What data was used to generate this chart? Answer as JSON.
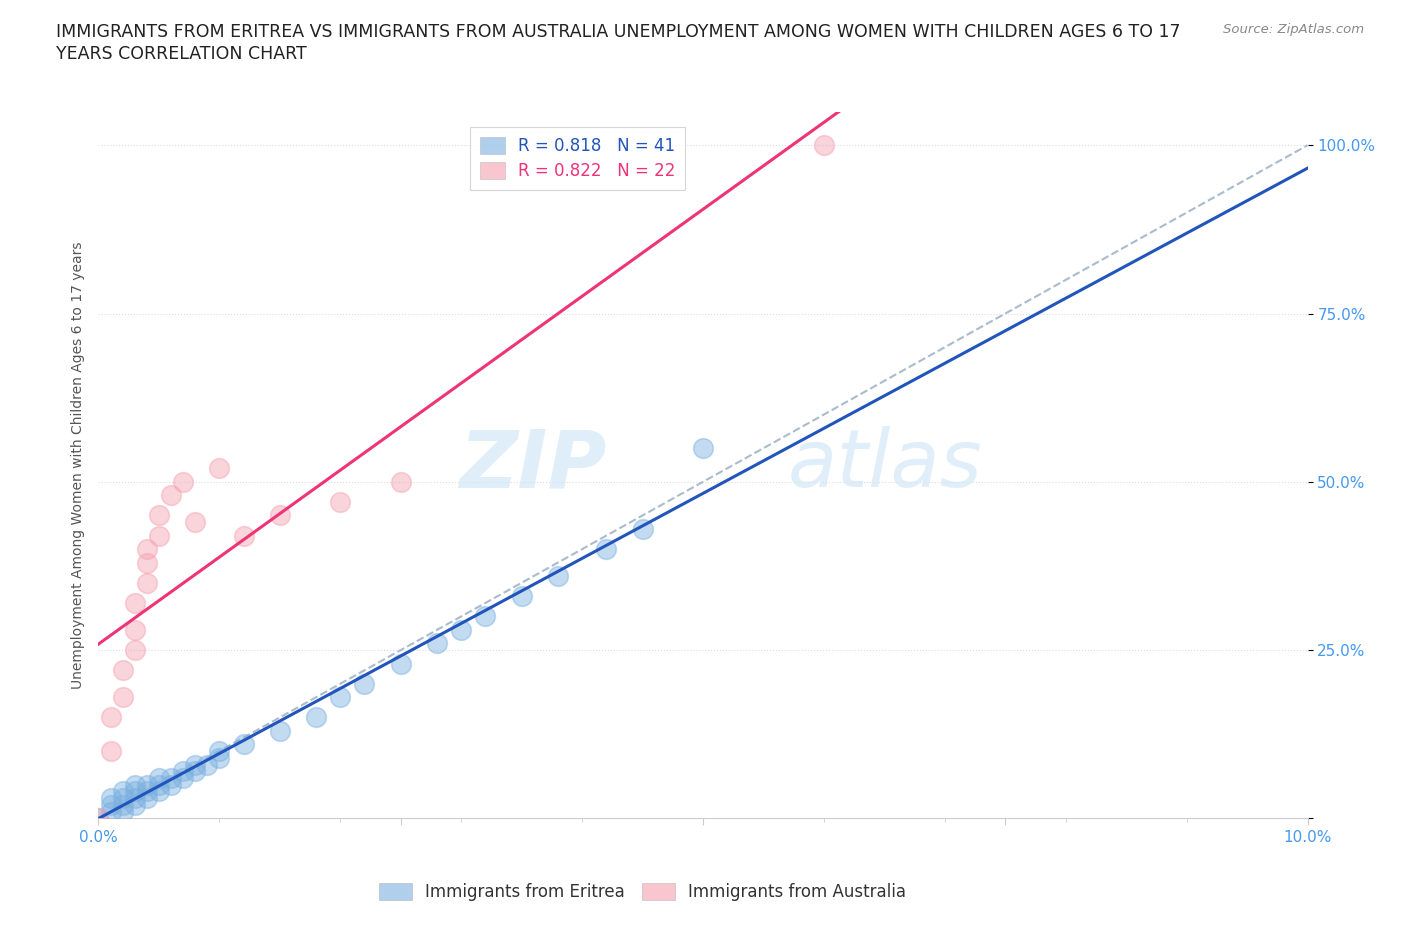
{
  "title_line1": "IMMIGRANTS FROM ERITREA VS IMMIGRANTS FROM AUSTRALIA UNEMPLOYMENT AMONG WOMEN WITH CHILDREN AGES 6 TO 17",
  "title_line2": "YEARS CORRELATION CHART",
  "source_text": "Source: ZipAtlas.com",
  "ylabel": "Unemployment Among Women with Children Ages 6 to 17 years",
  "xlim": [
    0.0,
    0.1
  ],
  "ylim": [
    0.0,
    1.05
  ],
  "background_color": "#ffffff",
  "watermark_zip": "ZIP",
  "watermark_atlas": "atlas",
  "eritrea_color": "#7ab0e0",
  "australia_color": "#f5a0b0",
  "eritrea_R": 0.818,
  "eritrea_N": 41,
  "australia_R": 0.822,
  "australia_N": 22,
  "eritrea_scatter": [
    [
      0.0,
      0.0
    ],
    [
      0.001,
      0.01
    ],
    [
      0.001,
      0.02
    ],
    [
      0.001,
      0.03
    ],
    [
      0.002,
      0.01
    ],
    [
      0.002,
      0.02
    ],
    [
      0.002,
      0.03
    ],
    [
      0.002,
      0.04
    ],
    [
      0.003,
      0.02
    ],
    [
      0.003,
      0.03
    ],
    [
      0.003,
      0.04
    ],
    [
      0.003,
      0.05
    ],
    [
      0.004,
      0.03
    ],
    [
      0.004,
      0.04
    ],
    [
      0.004,
      0.05
    ],
    [
      0.005,
      0.04
    ],
    [
      0.005,
      0.05
    ],
    [
      0.005,
      0.06
    ],
    [
      0.006,
      0.05
    ],
    [
      0.006,
      0.06
    ],
    [
      0.007,
      0.06
    ],
    [
      0.007,
      0.07
    ],
    [
      0.008,
      0.07
    ],
    [
      0.008,
      0.08
    ],
    [
      0.009,
      0.08
    ],
    [
      0.01,
      0.09
    ],
    [
      0.01,
      0.1
    ],
    [
      0.012,
      0.11
    ],
    [
      0.015,
      0.13
    ],
    [
      0.018,
      0.15
    ],
    [
      0.02,
      0.18
    ],
    [
      0.022,
      0.2
    ],
    [
      0.025,
      0.23
    ],
    [
      0.028,
      0.26
    ],
    [
      0.03,
      0.28
    ],
    [
      0.032,
      0.3
    ],
    [
      0.035,
      0.33
    ],
    [
      0.038,
      0.36
    ],
    [
      0.042,
      0.4
    ],
    [
      0.045,
      0.43
    ],
    [
      0.05,
      0.55
    ]
  ],
  "australia_scatter": [
    [
      0.0,
      0.0
    ],
    [
      0.001,
      0.1
    ],
    [
      0.001,
      0.15
    ],
    [
      0.002,
      0.18
    ],
    [
      0.002,
      0.22
    ],
    [
      0.003,
      0.25
    ],
    [
      0.003,
      0.28
    ],
    [
      0.003,
      0.32
    ],
    [
      0.004,
      0.35
    ],
    [
      0.004,
      0.38
    ],
    [
      0.004,
      0.4
    ],
    [
      0.005,
      0.42
    ],
    [
      0.005,
      0.45
    ],
    [
      0.006,
      0.48
    ],
    [
      0.007,
      0.5
    ],
    [
      0.008,
      0.44
    ],
    [
      0.01,
      0.52
    ],
    [
      0.012,
      0.42
    ],
    [
      0.015,
      0.45
    ],
    [
      0.02,
      0.47
    ],
    [
      0.025,
      0.5
    ],
    [
      0.06,
      1.0
    ]
  ],
  "eritrea_line_color": "#2255bb",
  "australia_line_color": "#ee3377",
  "diagonal_color": "#aabbcc",
  "grid_color": "#dddddd",
  "title_fontsize": 12.5,
  "label_fontsize": 10,
  "tick_fontsize": 11,
  "legend_fontsize": 12,
  "source_fontsize": 9.5
}
